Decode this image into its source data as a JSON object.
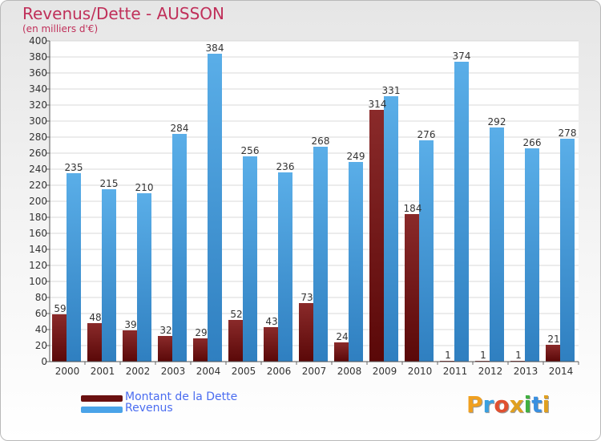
{
  "chart_data": {
    "type": "bar",
    "title": "Revenus/Dette - AUSSON",
    "subtitle": "(en milliers d'€)",
    "categories": [
      "2000",
      "2001",
      "2002",
      "2003",
      "2004",
      "2005",
      "2006",
      "2007",
      "2008",
      "2009",
      "2010",
      "2011",
      "2012",
      "2013",
      "2014"
    ],
    "series": [
      {
        "name": "Montant de la Dette",
        "color": "#7a1a1a",
        "values": [
          59,
          48,
          39,
          32,
          29,
          52,
          43,
          73,
          24,
          314,
          184,
          1,
          1,
          1,
          21
        ]
      },
      {
        "name": "Revenus",
        "color": "#4aa3e8",
        "values": [
          235,
          215,
          210,
          284,
          384,
          256,
          236,
          268,
          249,
          331,
          276,
          374,
          292,
          266,
          278
        ]
      }
    ],
    "ylim": [
      0,
      400
    ],
    "ytick_step": 20,
    "yticks": [
      "0",
      "20",
      "40",
      "60",
      "80",
      "100",
      "120",
      "140",
      "160",
      "180",
      "200",
      "220",
      "240",
      "260",
      "280",
      "300",
      "320",
      "340",
      "360",
      "380",
      "400"
    ],
    "grid": true,
    "xlabel": "",
    "ylabel": "",
    "legend_position": "bottom-left"
  },
  "legend": {
    "debt_label": "Montant de la Dette",
    "revenue_label": "Revenus"
  },
  "logo": {
    "letters": [
      "P",
      "r",
      "o",
      "x",
      "i",
      "t",
      "i"
    ],
    "colors": [
      "#f0a020",
      "#3aa0e0",
      "#e05030",
      "#e0a020",
      "#40b040",
      "#3a8fe0",
      "#e0a020"
    ]
  }
}
